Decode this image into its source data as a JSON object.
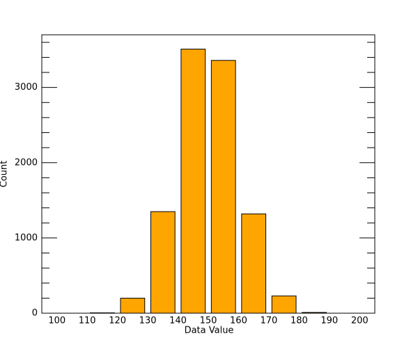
{
  "chart_data": {
    "type": "histogram",
    "bins": [
      100,
      110,
      120,
      130,
      140,
      150,
      160,
      170,
      180,
      190,
      200
    ],
    "values": [
      0,
      5,
      200,
      1350,
      3510,
      3360,
      1320,
      230,
      10,
      0
    ],
    "color": "#ffa500",
    "xlabel": "Data Value",
    "ylabel": "Count",
    "xlim": [
      95,
      205
    ],
    "ylim": [
      0,
      3700
    ],
    "xticks": [
      100,
      110,
      120,
      130,
      140,
      150,
      160,
      170,
      180,
      190,
      200
    ],
    "yticks": [
      0,
      1000,
      2000,
      3000
    ],
    "y_minor_ticks": [
      200,
      400,
      600,
      800,
      1200,
      1400,
      1600,
      1800,
      2200,
      2400,
      2600,
      2800,
      3200,
      3400,
      3600
    ]
  }
}
